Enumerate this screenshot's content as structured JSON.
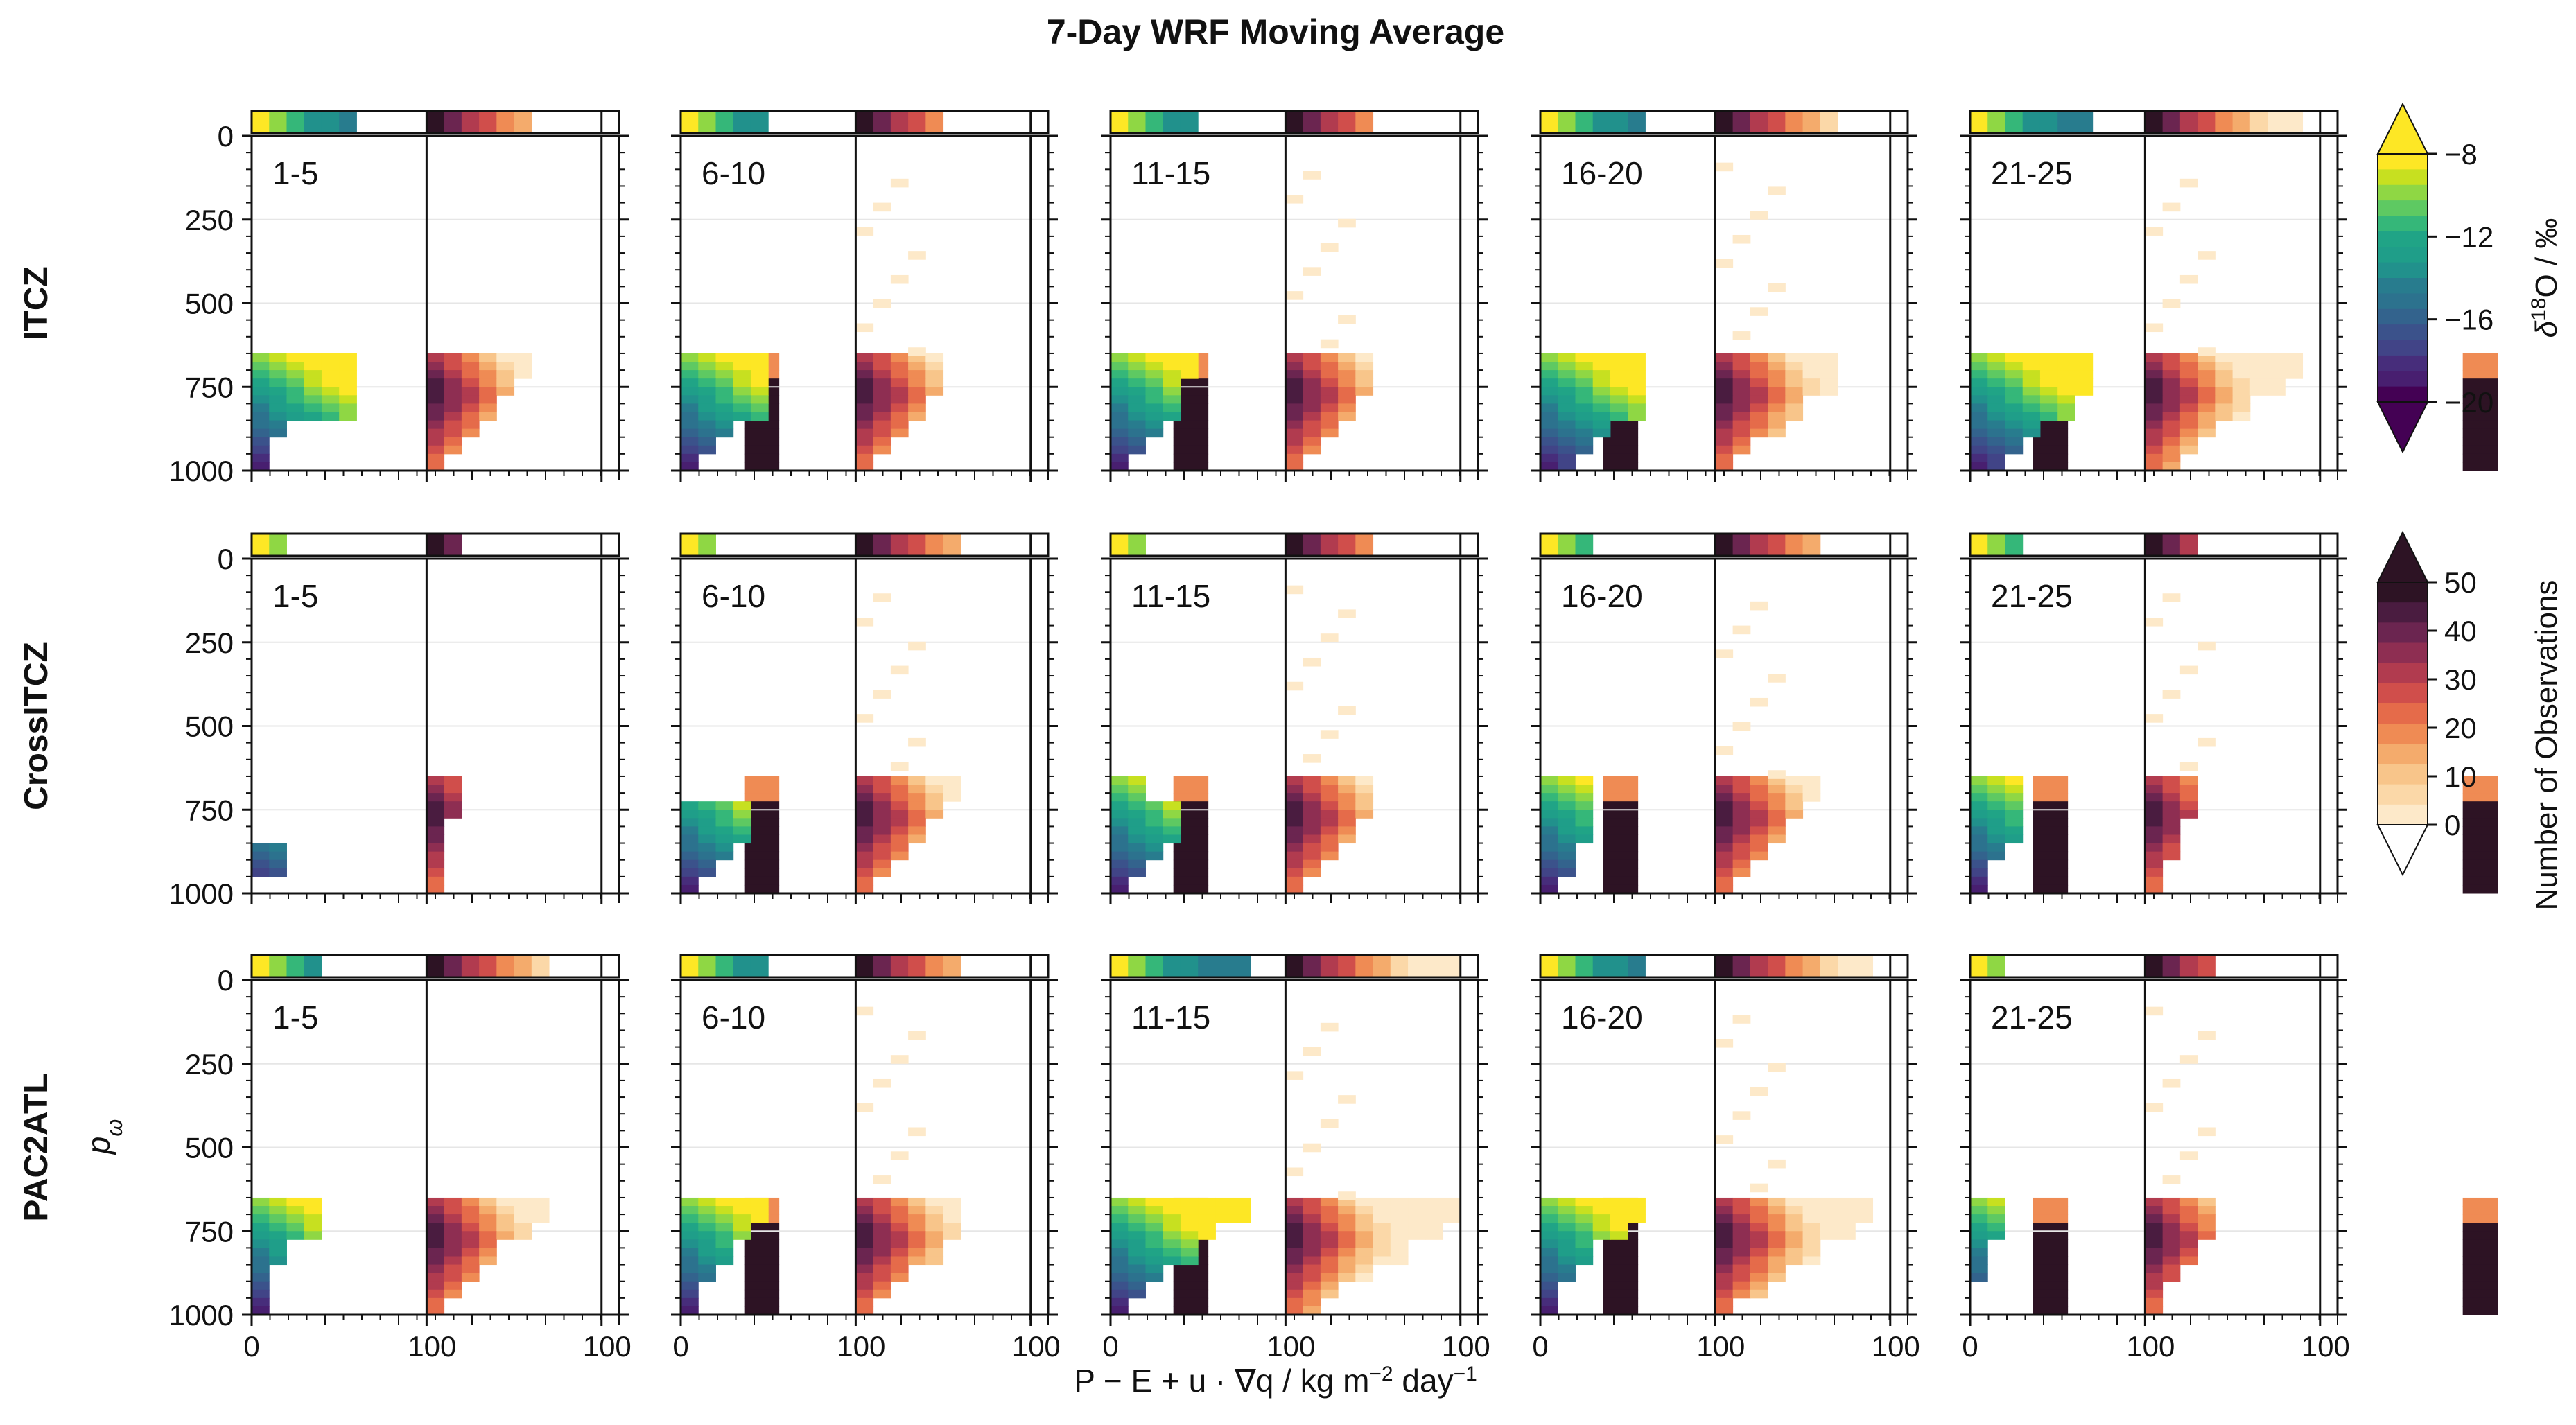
{
  "figure": {
    "title": "7-Day WRF Moving Average",
    "xlabel_parts": [
      "P − E + u · ∇q / kg m",
      "−2",
      " day",
      "−1"
    ],
    "ylabel_main": "p",
    "ylabel_sub": "ω"
  },
  "chart_data": {
    "type": "heatmap",
    "title": "7-Day WRF Moving Average",
    "rows": [
      "ITCZ",
      "CrossITCZ",
      "PAC2ATL"
    ],
    "columns": [
      "1-5",
      "6-10",
      "11-15",
      "16-20",
      "21-25"
    ],
    "yticks": [
      0,
      250,
      500,
      750,
      1000
    ],
    "xticks": [
      "0",
      "100",
      "100"
    ],
    "ylim": [
      1000,
      0
    ],
    "panel_missing": [
      [
        2,
        4
      ]
    ],
    "grid": "horizontal",
    "colorbar_d18O": {
      "label_main": "δ",
      "label_sup": "18",
      "label_rest": "O / ‰",
      "ticks": [
        "−8",
        "−12",
        "−16",
        "−20"
      ],
      "range": [
        -20,
        -8
      ],
      "colors": [
        "#fde725",
        "#c7e020",
        "#8fd744",
        "#5ec962",
        "#35b779",
        "#20a486",
        "#1f9e89",
        "#21918c",
        "#287c8e",
        "#2c728e",
        "#33638d",
        "#3b528b",
        "#414487",
        "#472d7b",
        "#481f70",
        "#440154"
      ],
      "extend": "both"
    },
    "colorbar_count": {
      "label": "Number of Observations",
      "ticks": [
        "50",
        "40",
        "30",
        "20",
        "10",
        "0"
      ],
      "range": [
        0,
        50
      ],
      "colors": [
        "#fde9c9",
        "#fbd8a8",
        "#f8c58a",
        "#f4ab6c",
        "#ef8b54",
        "#e56b4a",
        "#d04e4b",
        "#b13b4f",
        "#8e2e52",
        "#6b2550",
        "#4a1c40",
        "#2d1324"
      ],
      "extend": "both"
    },
    "panels": [
      {
        "row": 0,
        "col": 0,
        "label": "1-5",
        "top_cols": [
          "#fde725",
          "#8fd744",
          "#35b779",
          "#21918c",
          "#21918c",
          "#287c8e"
        ],
        "top_counts": [
          50,
          50,
          50,
          50,
          50,
          40,
          50,
          35,
          22
        ],
        "left_rows": [
          [],
          [],
          [],
          [],
          [],
          [],
          [],
          [],
          [],
          [],
          [],
          [],
          [],
          [],
          [],
          [],
          [],
          [],
          [],
          [],
          [],
          [],
          [],
          [],
          [],
          [],
          [],
          [],
          [],
          [],
          [],
          [],
          [],
          [],
          [],
          [],
          [],
          [],
          [],
          [],
          [],
          [],
          [],
          [],
          [],
          [],
          [],
          [],
          [],
          [
            "#1f9e89",
            "#21918c",
            "#287c8e",
            "#2c728e",
            "#33638d",
            "#3b528b",
            "#414487",
            "#472d7b",
            "#481f70",
            "#440154"
          ],
          [
            "#35b779",
            "#20a486",
            "#1f9e89",
            "#21918c",
            "#287c8e",
            "#2c728e"
          ],
          [
            "#5ec962",
            "#35b779",
            "#20a486",
            "#1f9e89",
            "#21918c",
            "#287c8e"
          ],
          [
            "#8fd744",
            "#5ec962",
            "#35b779",
            "#20a486",
            "#1f9e89"
          ],
          [
            "#c7e020",
            "#8fd744",
            "#5ec962",
            "#35b779"
          ],
          [
            "#fde725",
            "#c7e020",
            "#8fd744"
          ],
          [
            "#fde725",
            "#fde725"
          ]
        ]
      },
      {
        "row": 0,
        "col": 1,
        "label": "6-10"
      },
      {
        "row": 0,
        "col": 2,
        "label": "11-15"
      },
      {
        "row": 0,
        "col": 3,
        "label": "16-20"
      },
      {
        "row": 0,
        "col": 4,
        "label": "21-25"
      },
      {
        "row": 1,
        "col": 0,
        "label": "1-5"
      },
      {
        "row": 1,
        "col": 1,
        "label": "6-10"
      },
      {
        "row": 1,
        "col": 2,
        "label": "11-15"
      },
      {
        "row": 1,
        "col": 3,
        "label": "16-20"
      },
      {
        "row": 1,
        "col": 4,
        "label": "21-25"
      },
      {
        "row": 2,
        "col": 0,
        "label": "1-5"
      },
      {
        "row": 2,
        "col": 1,
        "label": "6-10"
      },
      {
        "row": 2,
        "col": 2,
        "label": "11-15"
      },
      {
        "row": 2,
        "col": 3,
        "label": "16-20"
      },
      {
        "row": 2,
        "col": 4,
        "label": "21-25"
      }
    ],
    "panel_shapes": {
      "d18O_profile_extent": [
        [
          [
            60,
            55,
            60,
            15,
            10,
            5
          ],
          [
            45,
            45,
            45,
            25,
            15,
            5
          ],
          [
            45,
            40,
            40,
            30,
            20,
            10
          ],
          [
            60,
            55,
            55,
            40,
            25,
            15
          ],
          [
            70,
            65,
            60,
            40,
            25,
            15
          ]
        ],
        [
          [
            0,
            0,
            0,
            15,
            15,
            0
          ],
          [
            0,
            40,
            40,
            30,
            20,
            10
          ],
          [
            20,
            40,
            35,
            25,
            15,
            10
          ],
          [
            30,
            30,
            25,
            20,
            15,
            5
          ],
          [
            25,
            30,
            25,
            15,
            10,
            5
          ]
        ],
        [
          [
            40,
            35,
            20,
            10,
            5,
            5
          ],
          [
            45,
            40,
            30,
            20,
            10,
            5
          ],
          [
            80,
            60,
            45,
            30,
            15,
            10
          ],
          [
            55,
            45,
            30,
            20,
            10,
            5
          ],
          [
            15,
            15,
            10,
            5,
            0,
            0
          ]
        ]
      ],
      "count_profile_extent": [
        [
          [
            60,
            50,
            40,
            30,
            20,
            10
          ],
          [
            50,
            45,
            40,
            25,
            15,
            5
          ],
          [
            50,
            45,
            40,
            30,
            15,
            10
          ],
          [
            70,
            65,
            50,
            35,
            20,
            10
          ],
          [
            90,
            80,
            60,
            40,
            25,
            15
          ]
        ],
        [
          [
            15,
            15,
            10,
            10,
            5,
            5
          ],
          [
            55,
            50,
            40,
            30,
            20,
            10
          ],
          [
            50,
            45,
            40,
            30,
            20,
            10
          ],
          [
            55,
            50,
            40,
            30,
            20,
            10
          ],
          [
            30,
            25,
            20,
            15,
            10,
            5
          ]
        ],
        [
          [
            70,
            60,
            40,
            25,
            15,
            5
          ],
          [
            60,
            55,
            45,
            30,
            20,
            10
          ],
          [
            95,
            90,
            70,
            50,
            30,
            15
          ],
          [
            85,
            75,
            55,
            40,
            25,
            10
          ],
          [
            40,
            35,
            25,
            15,
            10,
            5
          ]
        ]
      ]
    }
  }
}
